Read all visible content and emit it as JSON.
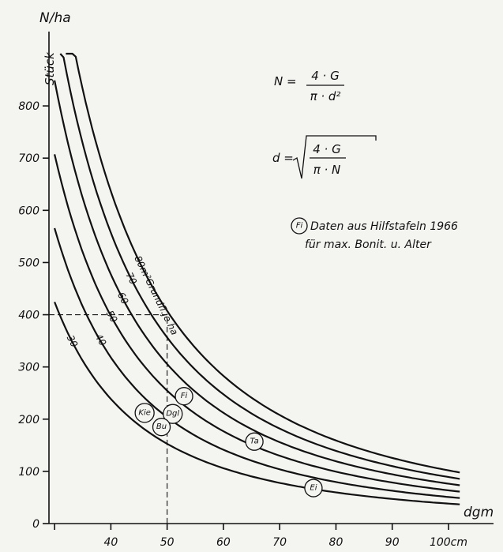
{
  "chart_data": {
    "type": "line",
    "title": "",
    "ylabel": "N/ha",
    "yunit": "Stück",
    "xlabel": "dgm",
    "x_unit_label": "100cm",
    "xlim": [
      29,
      108
    ],
    "ylim": [
      0,
      900
    ],
    "x_ticks": [
      {
        "value": 40,
        "label": "40"
      },
      {
        "value": 50,
        "label": "50"
      },
      {
        "value": 60,
        "label": "60"
      },
      {
        "value": 70,
        "label": "70"
      },
      {
        "value": 80,
        "label": "80"
      },
      {
        "value": 90,
        "label": "90"
      },
      {
        "value": 100,
        "label": "100cm"
      }
    ],
    "y_ticks": [
      {
        "value": 0,
        "label": "0"
      },
      {
        "value": 100,
        "label": "100"
      },
      {
        "value": 200,
        "label": "200"
      },
      {
        "value": 300,
        "label": "300"
      },
      {
        "value": 400,
        "label": "400"
      },
      {
        "value": 500,
        "label": "500"
      },
      {
        "value": 600,
        "label": "600"
      },
      {
        "value": 700,
        "label": "700"
      },
      {
        "value": 800,
        "label": "800"
      }
    ],
    "x_extra_ticks": [
      30
    ],
    "series": [
      {
        "name": "30",
        "G": 30,
        "x": [
          30,
          40,
          50,
          60,
          70,
          80,
          90,
          100,
          102
        ],
        "y": [
          425,
          239,
          153,
          106,
          78,
          60,
          47,
          38,
          37
        ],
        "label_x": 33,
        "label_y": 405
      },
      {
        "name": "40",
        "G": 40,
        "x": [
          30,
          40,
          50,
          60,
          70,
          80,
          90,
          100,
          102
        ],
        "y": [
          566,
          318,
          204,
          141,
          104,
          80,
          63,
          51,
          49
        ],
        "label_x": 38,
        "label_y": 428
      },
      {
        "name": "50",
        "G": 50,
        "x": [
          30,
          40,
          50,
          60,
          70,
          80,
          90,
          100,
          102
        ],
        "y": [
          707,
          398,
          255,
          177,
          130,
          99,
          79,
          64,
          61
        ],
        "label_x": 40,
        "label_y": 505
      },
      {
        "name": "60",
        "G": 60,
        "x": [
          30,
          40,
          50,
          60,
          70,
          80,
          90,
          100,
          102
        ],
        "y": [
          849,
          477,
          306,
          212,
          156,
          119,
          94,
          76,
          73
        ],
        "label_x": 42,
        "label_y": 555
      },
      {
        "name": "70",
        "G": 70,
        "x": [
          31,
          40,
          50,
          60,
          70,
          80,
          90,
          100,
          102
        ],
        "y": [
          927,
          557,
          357,
          248,
          182,
          139,
          110,
          89,
          86
        ],
        "label_x": 43.5,
        "label_y": 585
      },
      {
        "name": "80m²Grundfl.je ha",
        "G": 80,
        "x": [
          32,
          40,
          50,
          60,
          70,
          80,
          90,
          100,
          102
        ],
        "y": [
          995,
          637,
          407,
          283,
          208,
          159,
          126,
          102,
          98
        ],
        "label_x": 45,
        "label_y": 590
      }
    ],
    "guide_lines": [
      {
        "x": 50,
        "y": 400
      }
    ],
    "circle_marks": [
      {
        "text": "Fi",
        "x": 53,
        "y": 244
      },
      {
        "text": "Kie",
        "x": 46,
        "y": 212
      },
      {
        "text": "Dgl",
        "x": 51,
        "y": 210
      },
      {
        "text": "Bu",
        "x": 49,
        "y": 185
      },
      {
        "text": "Ta",
        "x": 65.5,
        "y": 157
      },
      {
        "text": "Ei",
        "x": 76,
        "y": 68
      }
    ],
    "annotations": {
      "formula1_lhs": "N =",
      "formula1_num": "4 · G",
      "formula1_den": "π · d²",
      "formula2_lhs": "d =",
      "formula2_num": "4 · G",
      "formula2_den": "π · N",
      "note_symbol": "Fi",
      "note_line1": "Daten aus Hilfstafeln 1966",
      "note_line2": "für max. Bonit. u. Alter"
    }
  }
}
